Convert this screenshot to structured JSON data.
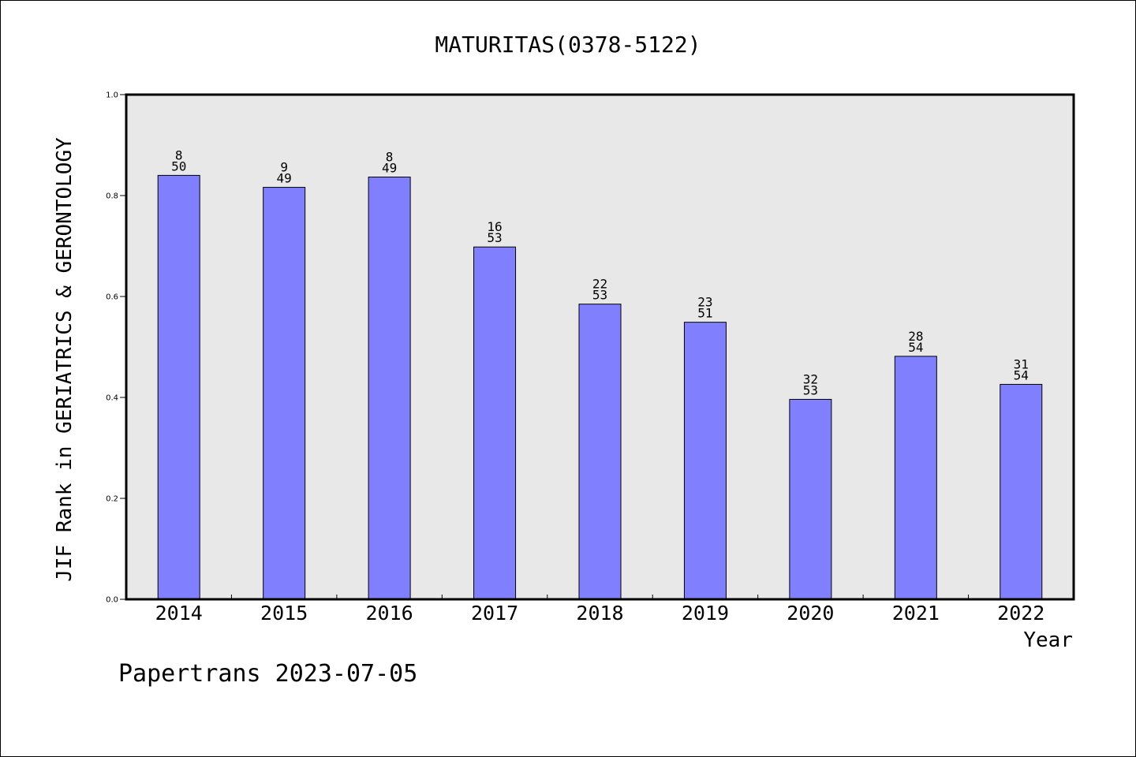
{
  "chart_data": {
    "type": "bar",
    "title": "MATURITAS(0378-5122)",
    "xlabel": "Year",
    "ylabel": "JIF Rank in GERIATRICS & GERONTOLOGY",
    "footer": "Papertrans 2023-07-05",
    "ylim": [
      0,
      1.0
    ],
    "yticks": [
      "0.0",
      "0.2",
      "0.4",
      "0.6",
      "0.8",
      "1.0"
    ],
    "grid": false,
    "colors": {
      "bar": "#8080ff",
      "plot_bg": "#e8e8e8",
      "bar_edge": "#000000"
    },
    "categories": [
      "2014",
      "2015",
      "2016",
      "2017",
      "2018",
      "2019",
      "2020",
      "2021",
      "2022"
    ],
    "values": [
      0.84,
      0.8163,
      0.8367,
      0.6981,
      0.5849,
      0.549,
      0.3962,
      0.4815,
      0.4259
    ],
    "labels": [
      {
        "rank": "8",
        "total": "50"
      },
      {
        "rank": "9",
        "total": "49"
      },
      {
        "rank": "8",
        "total": "49"
      },
      {
        "rank": "16",
        "total": "53"
      },
      {
        "rank": "22",
        "total": "53"
      },
      {
        "rank": "23",
        "total": "51"
      },
      {
        "rank": "32",
        "total": "53"
      },
      {
        "rank": "28",
        "total": "54"
      },
      {
        "rank": "31",
        "total": "54"
      }
    ]
  }
}
